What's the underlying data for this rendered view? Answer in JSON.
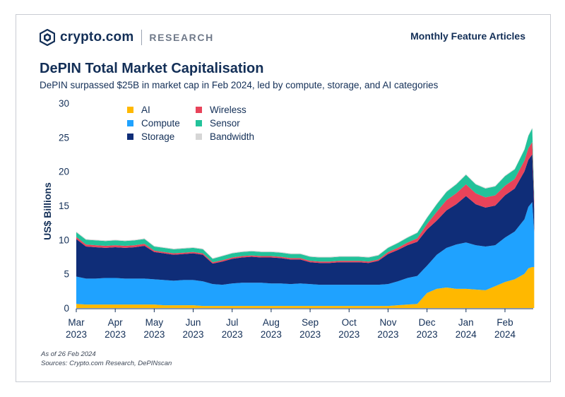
{
  "header": {
    "brand": "crypto.com",
    "section": "RESEARCH",
    "right_label": "Monthly Feature Articles"
  },
  "title": "DePIN Total Market Capitalisation",
  "subtitle": "DePIN surpassed $25B in market cap in Feb 2024, led by compute, storage, and AI categories",
  "footnotes": {
    "as_of": "As of 26 Feb 2024",
    "sources": "Sources: Crypto.com Research, DePINscan"
  },
  "colors": {
    "ai": "#ffb800",
    "compute": "#1fa2ff",
    "storage": "#0f2d78",
    "wireless": "#e8435a",
    "sensor": "#22c29a",
    "bandwidth": "#d6d6d6",
    "text": "#132f57"
  },
  "chart_data": {
    "type": "area",
    "stacked": true,
    "title": "DePIN Total Market Capitalisation",
    "xlabel": "",
    "ylabel": "US$ Billions",
    "ylim": [
      0,
      30
    ],
    "yticks": [
      0,
      5,
      10,
      15,
      20,
      25,
      30
    ],
    "grid": false,
    "legend_position": "top-left",
    "x_ticks": [
      {
        "x": 0,
        "line1": "Mar",
        "line2": "2023"
      },
      {
        "x": 1,
        "line1": "Apr",
        "line2": "2023"
      },
      {
        "x": 2,
        "line1": "May",
        "line2": "2023"
      },
      {
        "x": 3,
        "line1": "Jun",
        "line2": "2023"
      },
      {
        "x": 4,
        "line1": "Jul",
        "line2": "2023"
      },
      {
        "x": 5,
        "line1": "Aug",
        "line2": "2023"
      },
      {
        "x": 6,
        "line1": "Sep",
        "line2": "2023"
      },
      {
        "x": 7,
        "line1": "Oct",
        "line2": "2023"
      },
      {
        "x": 8,
        "line1": "Nov",
        "line2": "2023"
      },
      {
        "x": 9,
        "line1": "Dec",
        "line2": "2023"
      },
      {
        "x": 10,
        "line1": "Jan",
        "line2": "2024"
      },
      {
        "x": 11,
        "line1": "Feb",
        "line2": "2024"
      }
    ],
    "x": [
      0,
      0.25,
      0.5,
      0.75,
      1,
      1.25,
      1.5,
      1.75,
      2,
      2.25,
      2.5,
      2.75,
      3,
      3.25,
      3.5,
      3.75,
      4,
      4.25,
      4.5,
      4.75,
      5,
      5.25,
      5.5,
      5.75,
      6,
      6.25,
      6.5,
      6.75,
      7,
      7.25,
      7.5,
      7.75,
      8,
      8.25,
      8.5,
      8.75,
      9,
      9.25,
      9.5,
      9.75,
      10,
      10.25,
      10.5,
      10.75,
      11,
      11.25,
      11.5,
      11.6,
      11.7,
      11.75
    ],
    "series": [
      {
        "name": "AI",
        "values": [
          0.6,
          0.5,
          0.5,
          0.5,
          0.5,
          0.5,
          0.5,
          0.5,
          0.5,
          0.4,
          0.4,
          0.4,
          0.4,
          0.3,
          0.3,
          0.3,
          0.3,
          0.3,
          0.3,
          0.3,
          0.3,
          0.3,
          0.3,
          0.3,
          0.3,
          0.3,
          0.3,
          0.3,
          0.3,
          0.3,
          0.3,
          0.3,
          0.3,
          0.4,
          0.5,
          0.6,
          2.2,
          2.8,
          3.0,
          2.8,
          2.8,
          2.7,
          2.6,
          3.2,
          3.8,
          4.2,
          5.0,
          5.8,
          6.0,
          6.0
        ]
      },
      {
        "name": "Compute",
        "values": [
          4.0,
          3.8,
          3.8,
          3.9,
          3.9,
          3.8,
          3.8,
          3.8,
          3.7,
          3.7,
          3.6,
          3.7,
          3.7,
          3.6,
          3.2,
          3.1,
          3.3,
          3.4,
          3.4,
          3.4,
          3.3,
          3.3,
          3.2,
          3.3,
          3.2,
          3.1,
          3.1,
          3.1,
          3.1,
          3.1,
          3.1,
          3.1,
          3.2,
          3.5,
          3.9,
          4.1,
          4.0,
          5.0,
          5.8,
          6.5,
          6.8,
          6.5,
          6.4,
          6.0,
          6.5,
          7.0,
          8.0,
          9.0,
          9.5,
          5.0
        ]
      },
      {
        "name": "Storage",
        "values": [
          5.5,
          4.7,
          4.6,
          4.4,
          4.5,
          4.5,
          4.6,
          4.8,
          4.0,
          3.9,
          3.8,
          3.8,
          3.9,
          3.9,
          3.0,
          3.4,
          3.6,
          3.7,
          3.8,
          3.7,
          3.8,
          3.7,
          3.6,
          3.5,
          3.2,
          3.2,
          3.2,
          3.3,
          3.3,
          3.3,
          3.2,
          3.5,
          4.4,
          4.6,
          4.8,
          5.0,
          5.3,
          5.0,
          5.5,
          5.9,
          6.8,
          6.0,
          5.7,
          5.8,
          6.2,
          6.3,
          7.0,
          6.9,
          7.0,
          3.5
        ]
      },
      {
        "name": "Wireless",
        "values": [
          0.3,
          0.3,
          0.3,
          0.3,
          0.3,
          0.3,
          0.3,
          0.3,
          0.2,
          0.2,
          0.2,
          0.2,
          0.2,
          0.2,
          0.2,
          0.2,
          0.2,
          0.2,
          0.2,
          0.2,
          0.2,
          0.2,
          0.2,
          0.2,
          0.2,
          0.2,
          0.2,
          0.2,
          0.2,
          0.2,
          0.2,
          0.2,
          0.3,
          0.3,
          0.4,
          0.5,
          0.8,
          1.3,
          1.5,
          1.6,
          1.7,
          1.6,
          1.5,
          1.5,
          1.4,
          1.4,
          1.6,
          1.7,
          1.8,
          1.2
        ]
      },
      {
        "name": "Sensor",
        "values": [
          0.7,
          0.7,
          0.7,
          0.7,
          0.7,
          0.7,
          0.7,
          0.7,
          0.6,
          0.6,
          0.6,
          0.6,
          0.6,
          0.6,
          0.5,
          0.6,
          0.6,
          0.6,
          0.6,
          0.6,
          0.6,
          0.6,
          0.6,
          0.6,
          0.6,
          0.6,
          0.6,
          0.6,
          0.6,
          0.6,
          0.6,
          0.6,
          0.6,
          0.7,
          0.7,
          0.8,
          0.9,
          1.1,
          1.2,
          1.3,
          1.4,
          1.3,
          1.3,
          1.3,
          1.4,
          1.4,
          1.6,
          1.8,
          2.0,
          1.0
        ]
      },
      {
        "name": "Bandwidth",
        "values": [
          0.1,
          0.1,
          0.1,
          0.1,
          0.1,
          0.1,
          0.1,
          0.1,
          0.1,
          0.1,
          0.1,
          0.1,
          0.1,
          0.1,
          0.1,
          0.1,
          0.1,
          0.1,
          0.1,
          0.1,
          0.1,
          0.1,
          0.1,
          0.1,
          0.1,
          0.1,
          0.1,
          0.1,
          0.1,
          0.1,
          0.1,
          0.1,
          0.1,
          0.1,
          0.1,
          0.1,
          0.1,
          0.1,
          0.1,
          0.1,
          0.1,
          0.1,
          0.1,
          0.1,
          0.1,
          0.1,
          0.1,
          0.1,
          0.1,
          0.1
        ]
      }
    ]
  }
}
